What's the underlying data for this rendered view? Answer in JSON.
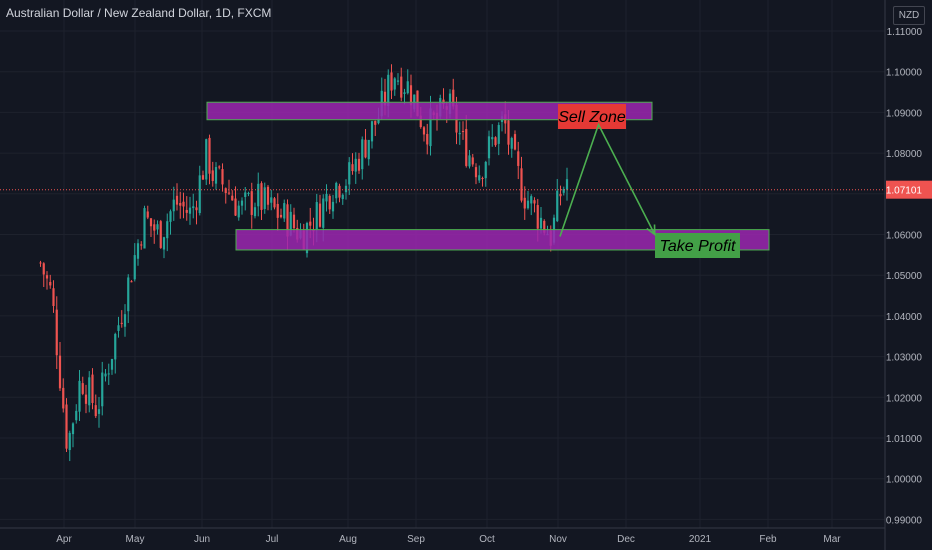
{
  "header": {
    "title": "Australian Dollar / New Zealand Dollar, 1D, FXCM",
    "currency": "NZD"
  },
  "chart_data": {
    "type": "candlestick",
    "title": "Australian Dollar / New Zealand Dollar, 1D, FXCM",
    "ylim": [
      0.99,
      1.112
    ],
    "yticks": [
      "1.11000",
      "1.10000",
      "1.09000",
      "1.08000",
      "1.07000",
      "1.06000",
      "1.05000",
      "1.04000",
      "1.03000",
      "1.02000",
      "1.01000",
      "1.00000",
      "0.99000"
    ],
    "xticks": [
      "Apr",
      "May",
      "Jun",
      "Jul",
      "Aug",
      "Sep",
      "Oct",
      "Nov",
      "Dec",
      "2021",
      "Feb",
      "Mar"
    ],
    "last_price": "1.07101",
    "last_price_value": 1.07101,
    "up_color": "#26a69a",
    "down_color": "#ef5350",
    "zone_color": "#9c27b0",
    "zone_border": "#4caf50",
    "path_color": "#4caf50",
    "sell_zone": {
      "label": "Sell Zone",
      "top": 1.0925,
      "bottom": 1.0882,
      "label_color": "#e53935"
    },
    "take_profit": {
      "label": "Take Profit",
      "top": 1.0612,
      "bottom": 1.0562,
      "label_color": "#43a047"
    },
    "projection": [
      {
        "x": "Nov",
        "y": 1.0595
      },
      {
        "x": "Nov 23",
        "y": 1.087
      },
      {
        "x": "Dec 18",
        "y": 1.06
      }
    ],
    "close_path": [
      {
        "x": "Mar 20",
        "y": 1.053
      },
      {
        "x": "Mar 25",
        "y": 1.045
      },
      {
        "x": "Apr 1",
        "y": 1.008
      },
      {
        "x": "Apr 7",
        "y": 1.025
      },
      {
        "x": "Apr 14",
        "y": 1.017
      },
      {
        "x": "Apr 21",
        "y": 1.032
      },
      {
        "x": "Apr 28",
        "y": 1.048
      },
      {
        "x": "May 5",
        "y": 1.064
      },
      {
        "x": "May 12",
        "y": 1.06
      },
      {
        "x": "May 19",
        "y": 1.068
      },
      {
        "x": "May 26",
        "y": 1.065
      },
      {
        "x": "Jun 2",
        "y": 1.08
      },
      {
        "x": "Jun 5",
        "y": 1.074
      },
      {
        "x": "Jun 10",
        "y": 1.072
      },
      {
        "x": "Jun 17",
        "y": 1.066
      },
      {
        "x": "Jun 24",
        "y": 1.069
      },
      {
        "x": "Jul 1",
        "y": 1.066
      },
      {
        "x": "Jul 7",
        "y": 1.064
      },
      {
        "x": "Jul 14",
        "y": 1.06
      },
      {
        "x": "Jul 21",
        "y": 1.065
      },
      {
        "x": "Jul 28",
        "y": 1.072
      },
      {
        "x": "Aug 4",
        "y": 1.074
      },
      {
        "x": "Aug 11",
        "y": 1.082
      },
      {
        "x": "Aug 18",
        "y": 1.09
      },
      {
        "x": "Aug 24",
        "y": 1.1
      },
      {
        "x": "Aug 31",
        "y": 1.096
      },
      {
        "x": "Sep 7",
        "y": 1.086
      },
      {
        "x": "Sep 12",
        "y": 1.088
      },
      {
        "x": "Sep 17",
        "y": 1.092
      },
      {
        "x": "Sep 24",
        "y": 1.082
      },
      {
        "x": "Oct 1",
        "y": 1.076
      },
      {
        "x": "Oct 7",
        "y": 1.083
      },
      {
        "x": "Oct 12",
        "y": 1.088
      },
      {
        "x": "Oct 16",
        "y": 1.078
      },
      {
        "x": "Oct 21",
        "y": 1.07
      },
      {
        "x": "Oct 28",
        "y": 1.064
      },
      {
        "x": "Nov 2",
        "y": 1.0595
      },
      {
        "x": "Nov 6",
        "y": 1.07
      },
      {
        "x": "Nov 9",
        "y": 1.0735
      }
    ]
  }
}
